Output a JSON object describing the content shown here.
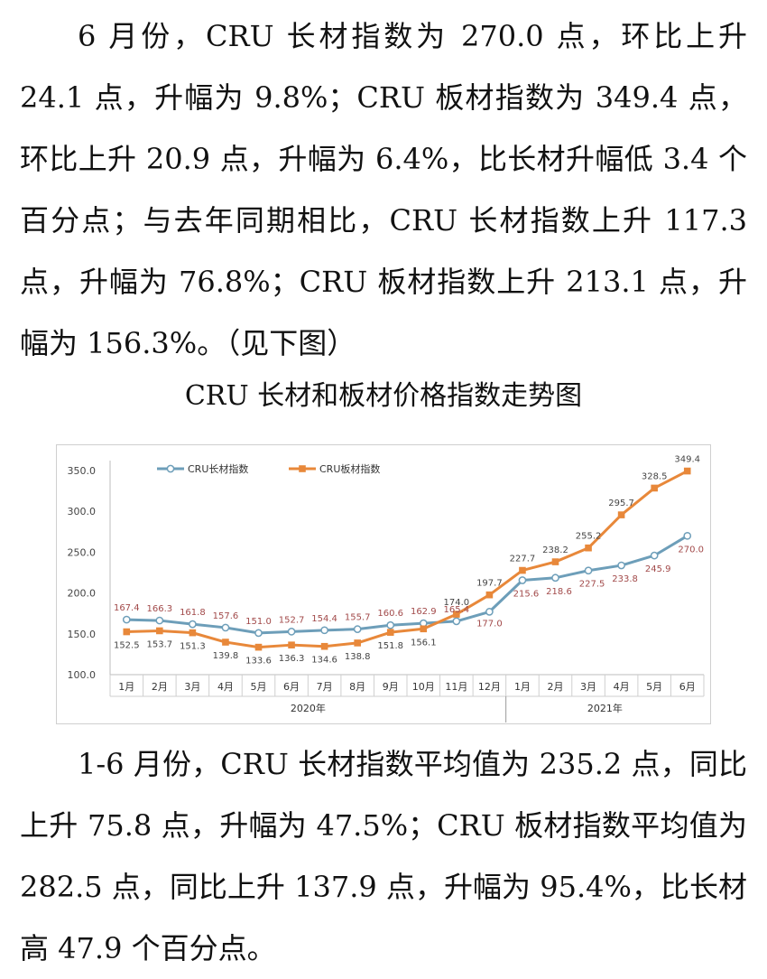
{
  "paragraph1": "6 月份，CRU 长材指数为 270.0 点，环比上升 24.1 点，升幅为 9.8%；CRU 板材指数为 349.4 点，环比上升 20.9 点，升幅为 6.4%，比长材升幅低 3.4 个百分点；与去年同期相比，CRU 长材指数上升 117.3 点，升幅为 76.8%；CRU 板材指数上升 213.1 点，升幅为 156.3%。（见下图）",
  "chart_title": "CRU 长材和板材价格指数走势图",
  "paragraph2": "1-6 月份，CRU 长材指数平均值为 235.2 点，同比上升 75.8 点，升幅为 47.5%；CRU 板材指数平均值为 282.5 点，同比上升 137.9 点，升幅为 95.4%，比长材高 47.9 个百分点。",
  "chart_data": {
    "type": "line",
    "categories": [
      "1月",
      "2月",
      "3月",
      "4月",
      "5月",
      "6月",
      "7月",
      "8月",
      "9月",
      "10月",
      "11月",
      "12月",
      "1月",
      "2月",
      "3月",
      "4月",
      "5月",
      "6月"
    ],
    "groups": [
      {
        "label": "2020年",
        "count": 12
      },
      {
        "label": "2021年",
        "count": 6
      }
    ],
    "ylim": [
      100,
      350
    ],
    "yticks": [
      "100.0",
      "150.0",
      "200.0",
      "250.0",
      "300.0",
      "350.0"
    ],
    "legend_position": "top-left",
    "grid": false,
    "series": [
      {
        "name": "CRU长材指数",
        "color": "#6d9eb9",
        "marker": "circle",
        "values": [
          167.4,
          166.3,
          161.8,
          157.6,
          151.0,
          152.7,
          154.4,
          155.7,
          160.6,
          162.9,
          165.4,
          177.0,
          215.6,
          218.6,
          227.5,
          233.8,
          245.9,
          270.0
        ],
        "labels": [
          "167.4",
          "166.3",
          "161.8",
          "157.6",
          "151.0",
          "152.7",
          "154.4",
          "155.7",
          "160.6",
          "162.9",
          "165.4",
          "177.0",
          "215.6",
          "218.6",
          "227.5",
          "233.8",
          "245.9",
          "270.0"
        ]
      },
      {
        "name": "CRU板材指数",
        "color": "#e8883a",
        "marker": "square",
        "values": [
          152.5,
          153.7,
          151.3,
          139.8,
          133.6,
          136.3,
          134.6,
          138.8,
          151.8,
          156.1,
          174.0,
          197.7,
          227.7,
          238.2,
          255.2,
          295.7,
          328.5,
          349.4
        ],
        "labels": [
          "152.5",
          "153.7",
          "151.3",
          "139.8",
          "133.6",
          "136.3",
          "134.6",
          "138.8",
          "151.8",
          "156.1",
          "174.0",
          "197.7",
          "227.7",
          "238.2",
          "255.2",
          "295.7",
          "328.5",
          "349.4"
        ]
      }
    ]
  }
}
